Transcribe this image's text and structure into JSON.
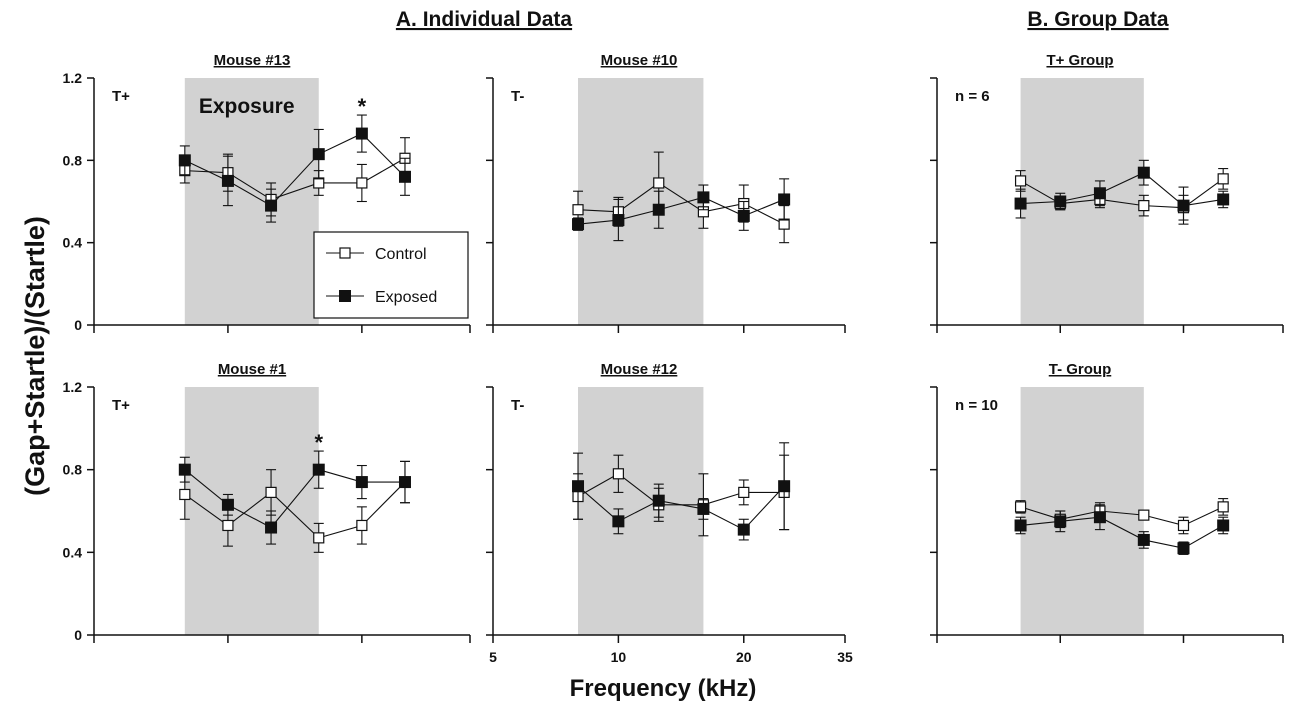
{
  "headers": {
    "a": "A. Individual Data",
    "b": "B. Group Data"
  },
  "y_label": "(Gap+Startle)/(Startle)",
  "x_label": "Frequency (kHz)",
  "legend": {
    "control": "Control",
    "exposed": "Exposed"
  },
  "exposure_label": "Exposure",
  "sig_marker": "*",
  "y_ticks": [
    "0",
    "0.4",
    "0.8",
    "1.2"
  ],
  "x_ticks": [
    "5",
    "10",
    "20",
    "35"
  ],
  "colors": {
    "shade": "#d2d2d2",
    "marker": "#111111",
    "background": "#ffffff"
  },
  "chart_data": [
    {
      "type": "line",
      "panel": "top-left",
      "title": "Mouse #13",
      "corner_label": "T+",
      "xlabel": "Frequency (kHz)",
      "ylabel": "(Gap+Startle)/(Startle)",
      "ylim": [
        0,
        1.2
      ],
      "exposure_band": [
        8,
        16
      ],
      "significant_x": [
        20
      ],
      "x": [
        8,
        10,
        12.5,
        16,
        20,
        25
      ],
      "series": [
        {
          "name": "Control",
          "marker": "open-square",
          "values": [
            0.75,
            0.74,
            0.61,
            0.69,
            0.69,
            0.81
          ],
          "errors": [
            0.06,
            0.09,
            0.08,
            0.06,
            0.09,
            0.1
          ]
        },
        {
          "name": "Exposed",
          "marker": "filled-square",
          "values": [
            0.8,
            0.7,
            0.58,
            0.83,
            0.93,
            0.72
          ],
          "errors": [
            0.07,
            0.12,
            0.08,
            0.12,
            0.09,
            0.09
          ]
        }
      ]
    },
    {
      "type": "line",
      "panel": "top-middle",
      "title": "Mouse #10",
      "corner_label": "T-",
      "xlabel": "Frequency (kHz)",
      "ylabel": "(Gap+Startle)/(Startle)",
      "ylim": [
        0,
        1.2
      ],
      "exposure_band": [
        8,
        16
      ],
      "significant_x": [],
      "x": [
        8,
        10,
        12.5,
        16,
        20,
        25
      ],
      "series": [
        {
          "name": "Control",
          "marker": "open-square",
          "values": [
            0.56,
            0.55,
            0.69,
            0.55,
            0.59,
            0.49
          ],
          "errors": [
            0.09,
            0.07,
            0.15,
            0.08,
            0.09,
            0.09
          ]
        },
        {
          "name": "Exposed",
          "marker": "filled-square",
          "values": [
            0.49,
            0.51,
            0.56,
            0.62,
            0.53,
            0.61
          ],
          "errors": [
            0.03,
            0.1,
            0.09,
            0.06,
            0.07,
            0.1
          ]
        }
      ]
    },
    {
      "type": "line",
      "panel": "top-right",
      "title": "T+ Group",
      "corner_label": "n = 6",
      "xlabel": "Frequency (kHz)",
      "ylabel": "(Gap+Startle)/(Startle)",
      "ylim": [
        0,
        1.2
      ],
      "exposure_band": [
        8,
        16
      ],
      "significant_x": [],
      "x": [
        8,
        10,
        12.5,
        16,
        20,
        25
      ],
      "series": [
        {
          "name": "Control",
          "marker": "open-square",
          "values": [
            0.7,
            0.59,
            0.61,
            0.58,
            0.57,
            0.71
          ],
          "errors": [
            0.05,
            0.03,
            0.04,
            0.05,
            0.06,
            0.05
          ]
        },
        {
          "name": "Exposed",
          "marker": "filled-square",
          "values": [
            0.59,
            0.6,
            0.64,
            0.74,
            0.58,
            0.61
          ],
          "errors": [
            0.07,
            0.04,
            0.06,
            0.06,
            0.09,
            0.04
          ]
        }
      ]
    },
    {
      "type": "line",
      "panel": "bottom-left",
      "title": "Mouse #1",
      "corner_label": "T+",
      "xlabel": "Frequency (kHz)",
      "ylabel": "(Gap+Startle)/(Startle)",
      "ylim": [
        0,
        1.2
      ],
      "exposure_band": [
        8,
        16
      ],
      "significant_x": [
        16
      ],
      "x": [
        8,
        10,
        12.5,
        16,
        20,
        25
      ],
      "series": [
        {
          "name": "Control",
          "marker": "open-square",
          "values": [
            0.68,
            0.53,
            0.69,
            0.47,
            0.53,
            0.74
          ],
          "errors": [
            0.12,
            0.1,
            0.11,
            0.07,
            0.09,
            0.1
          ]
        },
        {
          "name": "Exposed",
          "marker": "filled-square",
          "values": [
            0.8,
            0.63,
            0.52,
            0.8,
            0.74,
            0.74
          ],
          "errors": [
            0.06,
            0.05,
            0.08,
            0.09,
            0.08,
            0.1
          ]
        }
      ]
    },
    {
      "type": "line",
      "panel": "bottom-middle",
      "title": "Mouse #12",
      "corner_label": "T-",
      "xlabel": "Frequency (kHz)",
      "ylabel": "(Gap+Startle)/(Startle)",
      "ylim": [
        0,
        1.2
      ],
      "exposure_band": [
        8,
        16
      ],
      "significant_x": [],
      "x": [
        8,
        10,
        12.5,
        16,
        20,
        25
      ],
      "series": [
        {
          "name": "Control",
          "marker": "open-square",
          "values": [
            0.67,
            0.78,
            0.63,
            0.63,
            0.69,
            0.69
          ],
          "errors": [
            0.11,
            0.09,
            0.08,
            0.15,
            0.06,
            0.18
          ]
        },
        {
          "name": "Exposed",
          "marker": "filled-square",
          "values": [
            0.72,
            0.55,
            0.65,
            0.61,
            0.51,
            0.72
          ],
          "errors": [
            0.16,
            0.06,
            0.08,
            0.05,
            0.05,
            0.21
          ]
        }
      ]
    },
    {
      "type": "line",
      "panel": "bottom-right",
      "title": "T- Group",
      "corner_label": "n = 10",
      "xlabel": "Frequency (kHz)",
      "ylabel": "(Gap+Startle)/(Startle)",
      "ylim": [
        0,
        1.2
      ],
      "exposure_band": [
        8,
        16
      ],
      "significant_x": [],
      "x": [
        8,
        10,
        12.5,
        16,
        20,
        25
      ],
      "series": [
        {
          "name": "Control",
          "marker": "open-square",
          "values": [
            0.62,
            0.56,
            0.6,
            0.58,
            0.53,
            0.62
          ],
          "errors": [
            0.03,
            0.04,
            0.04,
            0.02,
            0.04,
            0.04
          ]
        },
        {
          "name": "Exposed",
          "marker": "filled-square",
          "values": [
            0.53,
            0.55,
            0.57,
            0.46,
            0.42,
            0.53
          ],
          "errors": [
            0.04,
            0.05,
            0.06,
            0.04,
            0.03,
            0.04
          ]
        }
      ]
    }
  ]
}
